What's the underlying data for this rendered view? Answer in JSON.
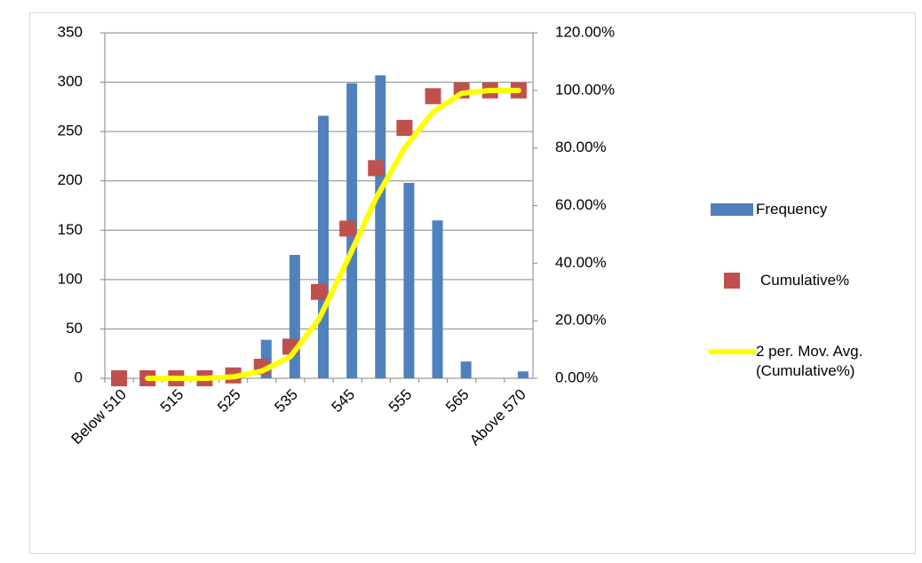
{
  "chart_data": {
    "type": "bar",
    "categories": [
      "Below 510",
      null,
      "515",
      null,
      "525",
      null,
      "535",
      null,
      "545",
      null,
      "555",
      null,
      "565",
      null,
      "Above 570"
    ],
    "series": [
      {
        "name": "Frequency",
        "type": "bar",
        "color": "#4f81bd",
        "values": [
          0,
          0,
          0,
          0,
          0,
          39,
          125,
          266,
          299,
          307,
          198,
          160,
          17,
          0,
          7
        ]
      },
      {
        "name": "Cumulative%",
        "type": "scatter",
        "axis": "y2",
        "color": "#c0504d",
        "values": [
          0,
          0,
          0,
          0,
          1,
          4,
          11,
          30,
          52,
          73,
          87,
          98,
          100,
          100,
          100
        ]
      },
      {
        "name": "2 per. Mov. Avg. (Cumulative%)",
        "type": "line",
        "axis": "y2",
        "color": "#ffff00",
        "values": [
          null,
          0,
          0,
          0,
          0.5,
          2.5,
          7.5,
          20.5,
          41,
          62.5,
          80,
          92.5,
          99,
          100,
          100
        ]
      }
    ],
    "ylim": [
      0,
      350
    ],
    "yticks": [
      0,
      50,
      100,
      150,
      200,
      250,
      300,
      350
    ],
    "y2lim": [
      0,
      120
    ],
    "y2ticks": [
      {
        "value": 0,
        "label": "0.00%"
      },
      {
        "value": 20,
        "label": "20.00%"
      },
      {
        "value": 40,
        "label": "40.00%"
      },
      {
        "value": 60,
        "label": "60.00%"
      },
      {
        "value": 80,
        "label": "80.00%"
      },
      {
        "value": 100,
        "label": "100.00%"
      },
      {
        "value": 120,
        "label": "120.00%"
      }
    ],
    "grid": true,
    "legend": "right"
  }
}
